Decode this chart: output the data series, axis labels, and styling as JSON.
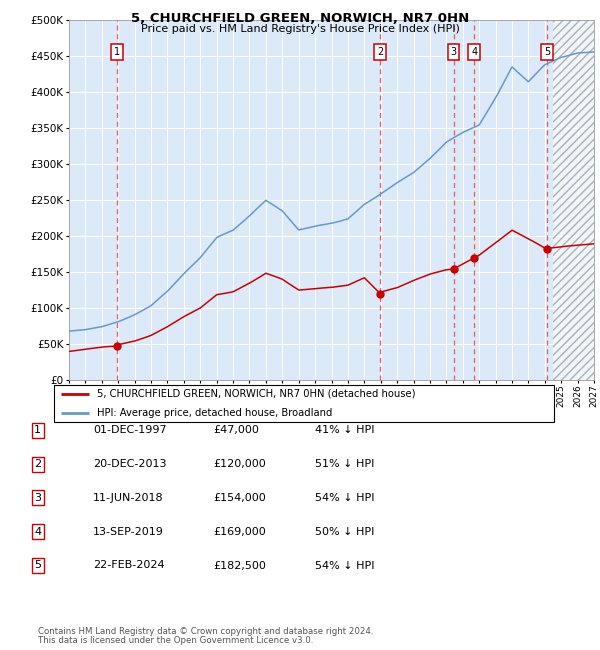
{
  "title": "5, CHURCHFIELD GREEN, NORWICH, NR7 0HN",
  "subtitle": "Price paid vs. HM Land Registry's House Price Index (HPI)",
  "legend_line1": "5, CHURCHFIELD GREEN, NORWICH, NR7 0HN (detached house)",
  "legend_line2": "HPI: Average price, detached house, Broadland",
  "footnote1": "Contains HM Land Registry data © Crown copyright and database right 2024.",
  "footnote2": "This data is licensed under the Open Government Licence v3.0.",
  "sales": [
    {
      "num": 1,
      "date": "01-DEC-1997",
      "date_x": 1997.917,
      "price": 47000
    },
    {
      "num": 2,
      "date": "20-DEC-2013",
      "date_x": 2013.964,
      "price": 120000
    },
    {
      "num": 3,
      "date": "11-JUN-2018",
      "date_x": 2018.44,
      "price": 154000
    },
    {
      "num": 4,
      "date": "13-SEP-2019",
      "date_x": 2019.7,
      "price": 169000
    },
    {
      "num": 5,
      "date": "22-FEB-2024",
      "date_x": 2024.14,
      "price": 182500
    }
  ],
  "table_rows": [
    [
      "1",
      "01-DEC-1997",
      "£47,000",
      "41% ↓ HPI"
    ],
    [
      "2",
      "20-DEC-2013",
      "£120,000",
      "51% ↓ HPI"
    ],
    [
      "3",
      "11-JUN-2018",
      "£154,000",
      "54% ↓ HPI"
    ],
    [
      "4",
      "13-SEP-2019",
      "£169,000",
      "50% ↓ HPI"
    ],
    [
      "5",
      "22-FEB-2024",
      "£182,500",
      "54% ↓ HPI"
    ]
  ],
  "xlim": [
    1995.0,
    2027.0
  ],
  "ylim": [
    0,
    500000
  ],
  "yticks": [
    0,
    50000,
    100000,
    150000,
    200000,
    250000,
    300000,
    350000,
    400000,
    450000,
    500000
  ],
  "bg_color": "#dce9f8",
  "grid_color": "#ffffff",
  "red_line_color": "#cc0000",
  "blue_line_color": "#6699cc",
  "vline_color": "#e06060",
  "future_start": 2024.5,
  "hpi_key_x": [
    1995,
    1996,
    1997,
    1998,
    1999,
    2000,
    2001,
    2002,
    2003,
    2004,
    2005,
    2006,
    2007,
    2008,
    2009,
    2010,
    2011,
    2012,
    2013,
    2014,
    2015,
    2016,
    2017,
    2018,
    2019,
    2020,
    2021,
    2022,
    2023,
    2024,
    2025,
    2026,
    2027
  ],
  "hpi_key_y": [
    68000,
    71000,
    75000,
    82000,
    92000,
    105000,
    125000,
    150000,
    172000,
    200000,
    210000,
    230000,
    252000,
    238000,
    212000,
    218000,
    222000,
    228000,
    248000,
    262000,
    278000,
    292000,
    312000,
    335000,
    348000,
    358000,
    395000,
    438000,
    418000,
    442000,
    452000,
    458000,
    460000
  ],
  "red_key_x": [
    1995,
    1996,
    1997,
    1997.917,
    1998,
    1999,
    2000,
    2001,
    2002,
    2003,
    2004,
    2005,
    2006,
    2007,
    2008,
    2009,
    2010,
    2011,
    2012,
    2013,
    2013.964,
    2014,
    2015,
    2016,
    2017,
    2018,
    2018.44,
    2019,
    2019.7,
    2020,
    2021,
    2022,
    2023,
    2024,
    2024.14,
    2025,
    2026,
    2027
  ],
  "red_key_y": [
    40000,
    43000,
    46000,
    47000,
    49000,
    54000,
    62000,
    74000,
    88000,
    100000,
    118000,
    122000,
    134000,
    148000,
    140000,
    125000,
    127000,
    129000,
    132000,
    142000,
    120000,
    122000,
    128000,
    138000,
    147000,
    153000,
    154000,
    161000,
    169000,
    173000,
    190000,
    208000,
    196000,
    183000,
    182500,
    185000,
    187000,
    189000
  ]
}
